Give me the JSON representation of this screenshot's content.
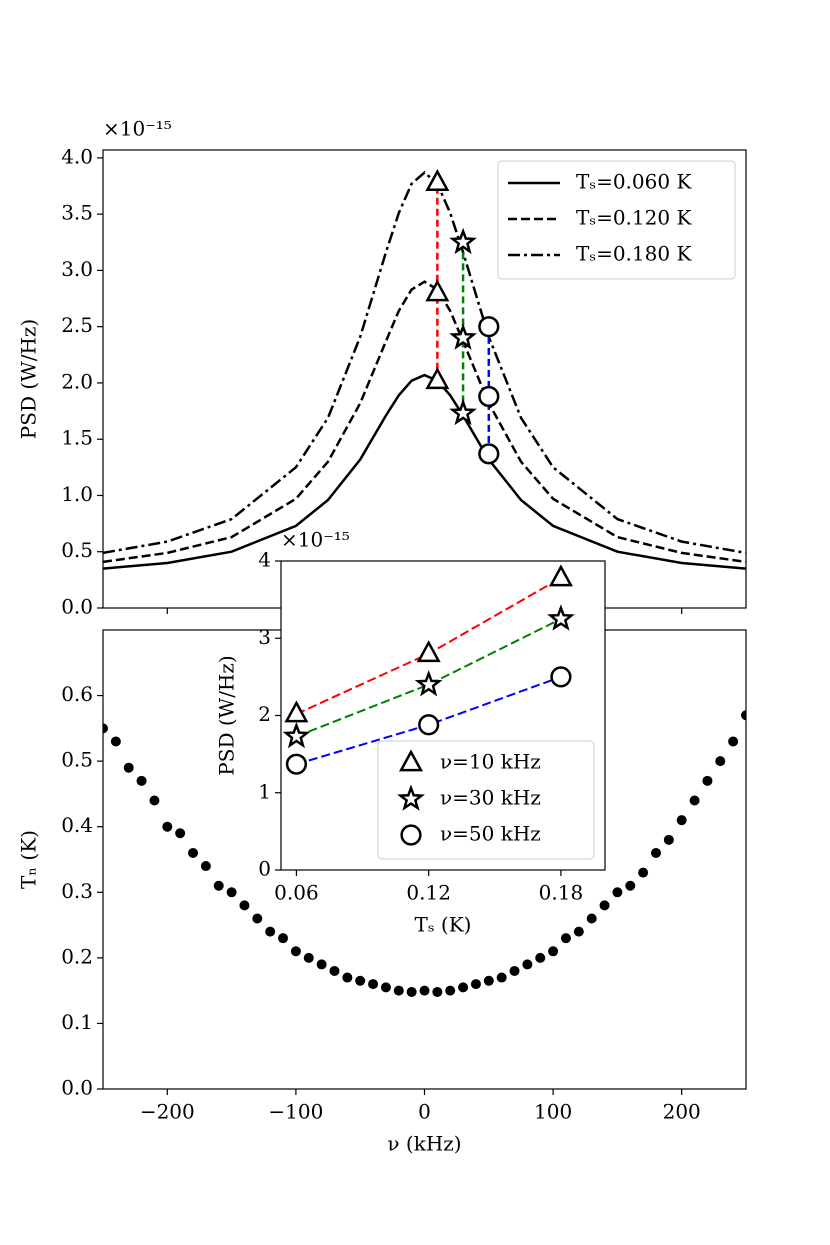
{
  "chart_data": [
    {
      "type": "line",
      "ylabel": "PSD (W/Hz)",
      "y_offset_label": "×10⁻¹⁵",
      "x": [
        -250,
        -200,
        -150,
        -100,
        -75,
        -50,
        -30,
        -20,
        -10,
        0,
        10,
        20,
        30,
        50,
        75,
        100,
        150,
        200,
        250
      ],
      "xlim": [
        -250,
        250
      ],
      "xticks": [
        {
          "value": -200,
          "label": "−200"
        },
        {
          "value": -100,
          "label": "−100"
        },
        0,
        100,
        200
      ],
      "show_xtick_labels": false,
      "ylim": [
        0,
        4.07
      ],
      "yticks": [
        {
          "value": 0,
          "label": "0.0"
        },
        0.5,
        {
          "value": 1,
          "label": "1.0"
        },
        1.5,
        {
          "value": 2,
          "label": "2.0"
        },
        2.5,
        {
          "value": 3,
          "label": "3.0"
        },
        3.5,
        {
          "value": 4,
          "label": "4.0"
        }
      ],
      "legend": "upper right",
      "series": [
        {
          "name": "Tₛ=0.060 K",
          "color": "#000000",
          "dash": "solid",
          "values": [
            0.35,
            0.4,
            0.5,
            0.73,
            0.96,
            1.32,
            1.71,
            1.89,
            2.02,
            2.07,
            2.02,
            1.89,
            1.71,
            1.32,
            0.96,
            0.73,
            0.5,
            0.4,
            0.35
          ]
        },
        {
          "name": "Tₛ=0.120 K",
          "color": "#000000",
          "dash": "dashed",
          "values": [
            0.41,
            0.49,
            0.63,
            0.97,
            1.3,
            1.82,
            2.37,
            2.64,
            2.83,
            2.9,
            2.83,
            2.64,
            2.37,
            1.82,
            1.3,
            0.97,
            0.63,
            0.49,
            0.41
          ]
        },
        {
          "name": "Tₛ=0.180 K",
          "color": "#000000",
          "dash": "dashdot",
          "values": [
            0.49,
            0.59,
            0.79,
            1.25,
            1.69,
            2.41,
            3.16,
            3.51,
            3.77,
            3.87,
            3.77,
            3.51,
            3.16,
            2.41,
            1.69,
            1.25,
            0.79,
            0.59,
            0.49
          ]
        }
      ],
      "marker_series": [
        {
          "marker": "triangle",
          "color": "#ff0000",
          "x": 10,
          "values": [
            2.02,
            2.8,
            3.78
          ]
        },
        {
          "marker": "star",
          "color": "#008000",
          "x": 30,
          "values": [
            1.73,
            2.4,
            3.25
          ]
        },
        {
          "marker": "circle",
          "color": "#0000ff",
          "x": 50,
          "values": [
            1.37,
            1.88,
            2.5
          ]
        }
      ]
    },
    {
      "type": "scatter",
      "xlabel": "ν (kHz)",
      "ylabel": "Tₙ (K)",
      "color": "#000000",
      "x": [
        -250,
        -240,
        -230,
        -220,
        -210,
        -200,
        -190,
        -180,
        -170,
        -160,
        -150,
        -140,
        -130,
        -120,
        -110,
        -100,
        -90,
        -80,
        -70,
        -60,
        -50,
        -40,
        -30,
        -20,
        -10,
        0,
        10,
        20,
        30,
        40,
        50,
        60,
        70,
        80,
        90,
        100,
        110,
        120,
        130,
        140,
        150,
        160,
        170,
        180,
        190,
        200,
        210,
        220,
        230,
        240,
        250
      ],
      "values": [
        0.55,
        0.53,
        0.49,
        0.47,
        0.44,
        0.4,
        0.39,
        0.36,
        0.34,
        0.31,
        0.3,
        0.28,
        0.26,
        0.24,
        0.23,
        0.21,
        0.2,
        0.19,
        0.18,
        0.17,
        0.165,
        0.16,
        0.155,
        0.15,
        0.148,
        0.15,
        0.148,
        0.15,
        0.155,
        0.16,
        0.165,
        0.17,
        0.18,
        0.19,
        0.2,
        0.21,
        0.23,
        0.24,
        0.26,
        0.28,
        0.3,
        0.31,
        0.33,
        0.36,
        0.38,
        0.41,
        0.44,
        0.47,
        0.5,
        0.53,
        0.57
      ],
      "xlim": [
        -250,
        250
      ],
      "xticks": [
        {
          "value": -200,
          "label": "−200"
        },
        {
          "value": -100,
          "label": "−100"
        },
        0,
        100,
        200
      ],
      "ylim": [
        0,
        0.7
      ],
      "yticks": [
        {
          "value": 0,
          "label": "0.0"
        },
        0.1,
        0.2,
        0.3,
        0.4,
        0.5,
        0.6
      ]
    },
    {
      "type": "line",
      "xlabel": "Tₛ (K)",
      "ylabel": "PSD (W/Hz)",
      "y_offset_label": "×10⁻¹⁵",
      "x": [
        0.06,
        0.12,
        0.18
      ],
      "xlim": [
        0.053,
        0.2
      ],
      "xticks": [
        0.06,
        0.12,
        0.18
      ],
      "ylim": [
        0,
        4
      ],
      "yticks": [
        0,
        1,
        2,
        3,
        4
      ],
      "legend": "lower right",
      "series": [
        {
          "name": "ν=10 kHz",
          "marker": "triangle",
          "color": "#ff0000",
          "dash": "dashed",
          "values": [
            2.02,
            2.8,
            3.78
          ]
        },
        {
          "name": "ν=30 kHz",
          "marker": "star",
          "color": "#008000",
          "dash": "dashed",
          "values": [
            1.73,
            2.4,
            3.25
          ]
        },
        {
          "name": "ν=50 kHz",
          "marker": "circle",
          "color": "#0000ff",
          "dash": "dashed",
          "values": [
            1.37,
            1.88,
            2.5
          ]
        }
      ]
    }
  ]
}
